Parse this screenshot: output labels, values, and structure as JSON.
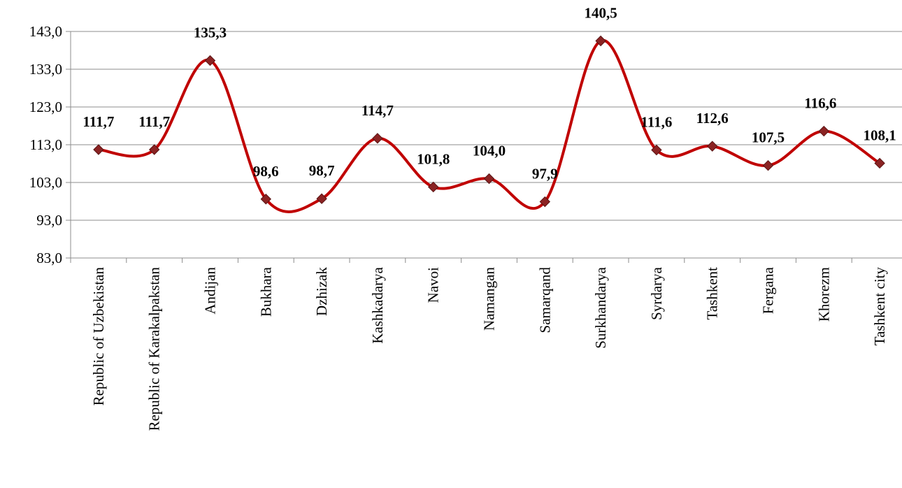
{
  "chart_data": {
    "type": "line",
    "smooth": true,
    "categories": [
      "Republic of Uzbekistan",
      "Republic of Karakalpakstan",
      "Andijan",
      "Bukhara",
      "Dzhizak",
      "Kashkadarya",
      "Navoi",
      "Namangan",
      "Samarqand",
      "Surkhandarya",
      "Syrdarya",
      "Tashkent",
      "Fergana",
      "Khorezm",
      "Tashkent city"
    ],
    "series": [
      {
        "values": [
          111.7,
          111.7,
          135.3,
          98.6,
          98.7,
          114.7,
          101.8,
          104.0,
          97.9,
          140.5,
          111.6,
          112.6,
          107.5,
          116.6,
          108.1
        ],
        "value_labels": [
          "111,7",
          "111,7",
          "135,3",
          "98,6",
          "98,7",
          "114,7",
          "101,8",
          "104,0",
          "97,9",
          "140,5",
          "111,6",
          "112,6",
          "107,5",
          "116,6",
          "108,1"
        ],
        "line_color": "#c00000",
        "marker_color": "#8b2323",
        "marker": "diamond"
      }
    ],
    "yticks": [
      83.0,
      93.0,
      103.0,
      113.0,
      123.0,
      133.0,
      143.0
    ],
    "ytick_labels": [
      "83,0",
      "93,0",
      "103,0",
      "113,0",
      "123,0",
      "133,0",
      "143,0"
    ],
    "ylim": [
      83.0,
      143.0
    ],
    "grid": "horizontal",
    "legend": "none",
    "title": "",
    "xlabel": "",
    "ylabel": ""
  }
}
